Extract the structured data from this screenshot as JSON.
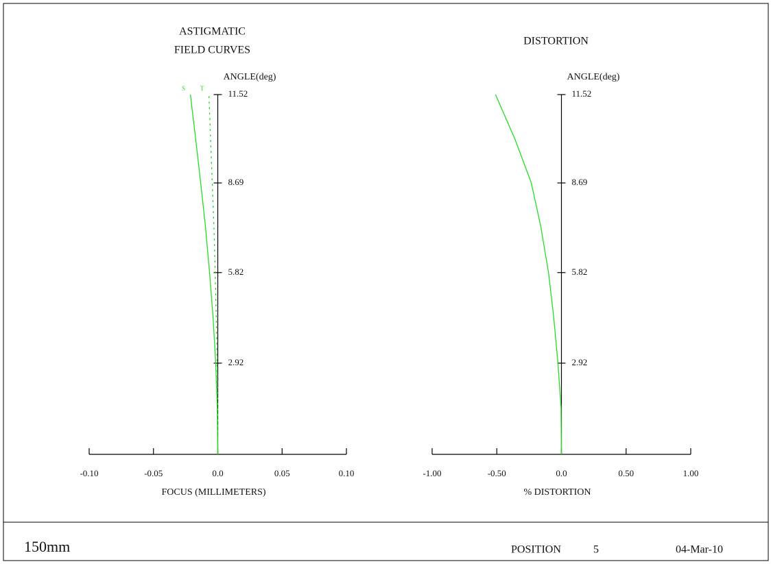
{
  "chart_data": [
    {
      "type": "line",
      "title": [
        "ASTIGMATIC",
        "FIELD CURVES"
      ],
      "x_label": "FOCUS (MILLIMETERS)",
      "y_label": "ANGLE(deg)",
      "xlim": [
        -0.1,
        0.1
      ],
      "xticks": [
        {
          "value": -0.1,
          "label": "-0.10"
        },
        {
          "value": -0.05,
          "label": "-0.05"
        },
        {
          "value": 0,
          "label": "0.0"
        },
        0.05,
        {
          "value": 0.1,
          "label": "0.10"
        }
      ],
      "ylim": [
        0,
        11.52
      ],
      "yticks": [
        2.92,
        5.82,
        8.69,
        11.52
      ],
      "y": [
        0,
        1.5,
        2.92,
        4.4,
        5.82,
        7.3,
        8.69,
        10.1,
        11.52
      ],
      "series": [
        {
          "name": "S",
          "color": "#22dd22",
          "line_style": "solid",
          "values": [
            0,
            -0.0004,
            -0.0016,
            -0.0037,
            -0.0064,
            -0.0096,
            -0.0133,
            -0.0172,
            -0.0213
          ]
        },
        {
          "name": "T",
          "color": "#22dd22",
          "line_style": "dotted",
          "values": [
            0,
            -0.0001,
            -0.0005,
            -0.0012,
            -0.002,
            -0.003,
            -0.0043,
            -0.0056,
            -0.0069
          ]
        }
      ]
    },
    {
      "type": "line",
      "title": "DISTORTION",
      "x_label": "% DISTORTION",
      "y_label": "ANGLE(deg)",
      "xlim": [
        -1,
        1
      ],
      "xticks": [
        {
          "value": -1,
          "label": "-1.00"
        },
        {
          "value": -0.5,
          "label": "-0.50"
        },
        {
          "value": 0,
          "label": "0.0"
        },
        {
          "value": 0.5,
          "label": "0.50"
        },
        {
          "value": 1,
          "label": "1.00"
        }
      ],
      "ylim": [
        0,
        11.52
      ],
      "yticks": [
        2.92,
        5.82,
        8.69,
        11.52
      ],
      "y": [
        0,
        1.5,
        2.92,
        4.4,
        5.82,
        7.3,
        8.69,
        10.1,
        11.52
      ],
      "color": "#22dd22",
      "values": [
        0,
        -0.003,
        -0.027,
        -0.06,
        -0.1,
        -0.16,
        -0.233,
        -0.36,
        -0.51
      ]
    }
  ],
  "footer": {
    "lens": "150mm",
    "position_label": "POSITION",
    "position": 5,
    "date": "04-Mar-10"
  }
}
